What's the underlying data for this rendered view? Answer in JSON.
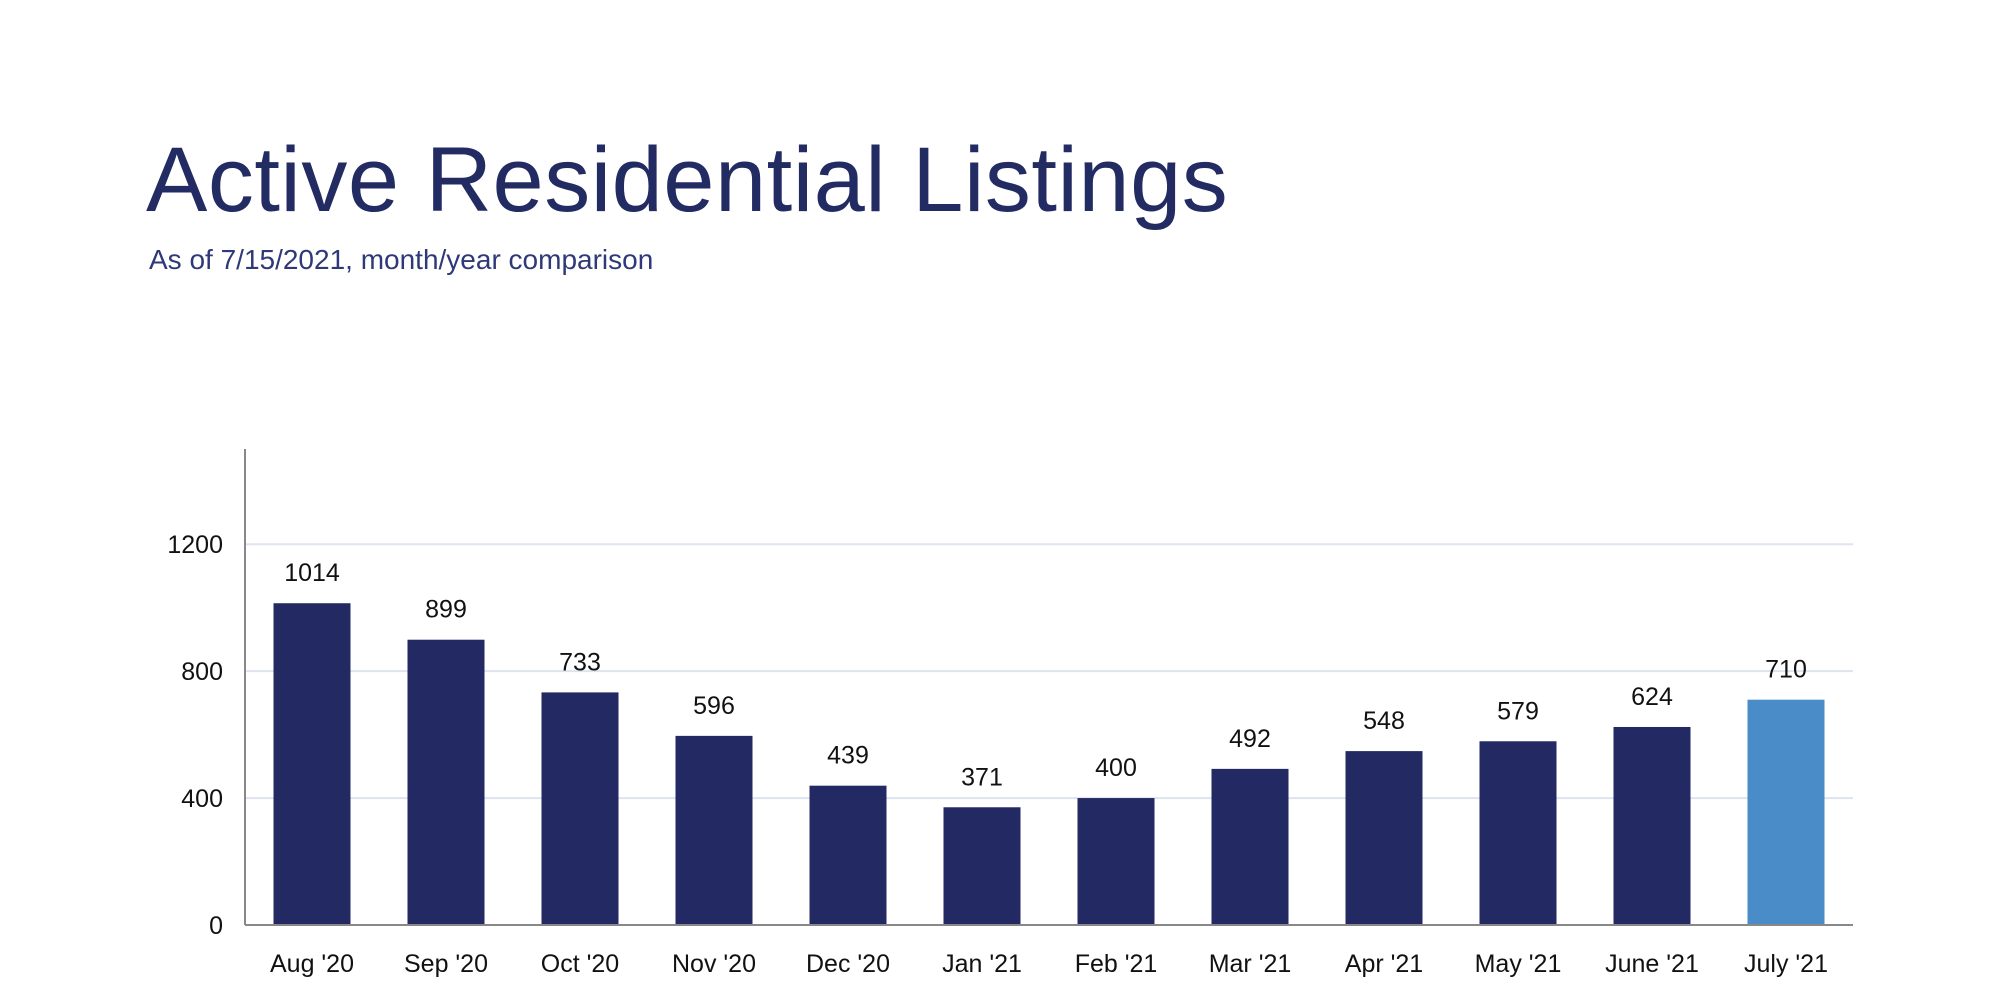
{
  "header": {
    "title": "Active Residential Listings",
    "subtitle": "As of 7/15/2021, month/year comparison"
  },
  "colors": {
    "bar": "#232a63",
    "highlight_bar": "#4a8cc8",
    "text": "#232b63",
    "grid": "#dde3f0"
  },
  "chart_data": {
    "type": "bar",
    "categories": [
      "Aug '20",
      "Sep '20",
      "Oct '20",
      "Nov '20",
      "Dec '20",
      "Jan '21",
      "Feb '21",
      "Mar '21",
      "Apr '21",
      "May '21",
      "June '21",
      "July '21"
    ],
    "values": [
      1014,
      899,
      733,
      596,
      439,
      371,
      400,
      492,
      548,
      579,
      624,
      710
    ],
    "highlight_index": 11,
    "ylim": [
      0,
      1500
    ],
    "yticks": [
      0,
      400,
      800,
      1200
    ],
    "grid": true,
    "legend": "none",
    "data_labels": true
  }
}
